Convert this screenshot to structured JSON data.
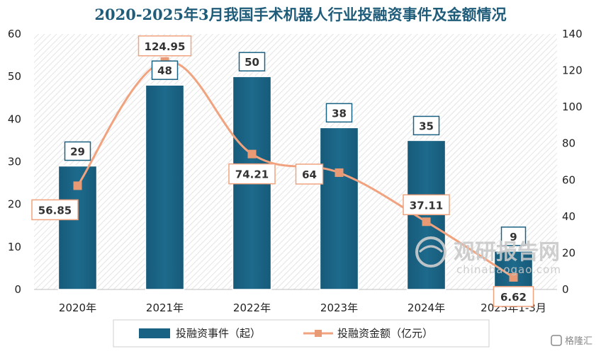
{
  "chart_data": {
    "type": "bar",
    "title": "2020-2025年3月我国手术机器人行业投融资事件及金额情况",
    "categories": [
      "2020年",
      "2021年",
      "2022年",
      "2023年",
      "2024年",
      "2025年1-3月"
    ],
    "series": [
      {
        "name": "投融资事件（起）",
        "type": "bar",
        "axis": "left",
        "values": [
          29,
          48,
          50,
          38,
          35,
          9
        ]
      },
      {
        "name": "投融资金额（亿元）",
        "type": "line",
        "axis": "right",
        "values": [
          56.85,
          124.95,
          74.21,
          64,
          37.11,
          6.62
        ]
      }
    ],
    "value_labels": {
      "bars": [
        "29",
        "48",
        "50",
        "38",
        "35",
        "9"
      ],
      "line": [
        "56.85",
        "124.95",
        "74.21",
        "64",
        "37.11",
        "6.62"
      ]
    },
    "y_left": {
      "min": 0,
      "max": 60,
      "ticks": [
        "0",
        "10",
        "20",
        "30",
        "40",
        "50",
        "60"
      ]
    },
    "y_right": {
      "min": 0,
      "max": 140,
      "ticks": [
        "0",
        "20",
        "40",
        "60",
        "80",
        "100",
        "120",
        "140"
      ]
    },
    "grid": false,
    "legend_position": "bottom",
    "colors": {
      "bar": "#1a6283",
      "line": "#f0a37e",
      "marker": "#e79a74",
      "title": "#1f5c7a"
    }
  },
  "watermark": {
    "brand": "观研报告网",
    "domain": "chinabaogao.com"
  },
  "corner_mark": "格隆汇"
}
